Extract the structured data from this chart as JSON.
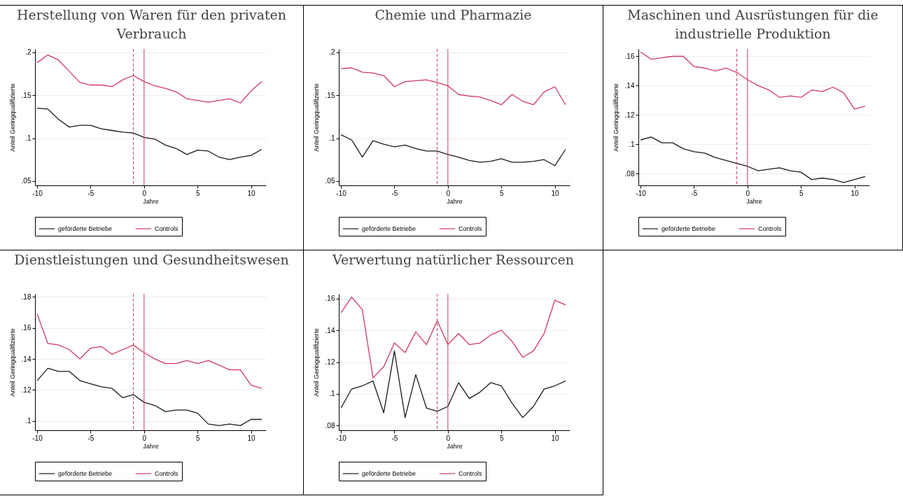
{
  "chart_data": [
    {
      "type": "line",
      "title": "Herstellung von Waren für den privaten Verbrauch",
      "xlabel": "Jahre",
      "ylabel": "Anteil Geringqualifizierte",
      "x": [
        -10,
        -9,
        -8,
        -7,
        -6,
        -5,
        -4,
        -3,
        -2,
        -1,
        0,
        1,
        2,
        3,
        4,
        5,
        6,
        7,
        8,
        9,
        10,
        11
      ],
      "xlim": [
        -10.2,
        11.4
      ],
      "xticks": [
        -10,
        -5,
        0,
        5,
        10
      ],
      "ylim": [
        0.045,
        0.204
      ],
      "yticks": [
        {
          "value": 0.05,
          "label": ".05"
        },
        {
          "value": 0.1,
          "label": ".1"
        },
        {
          "value": 0.15,
          "label": ".15"
        },
        {
          "value": 0.2,
          "label": ".2"
        }
      ],
      "grid": "y",
      "legend": "bottom",
      "series": [
        {
          "name": "geförderte Betriebe",
          "color": "#1a1a1a",
          "values": [
            0.135,
            0.134,
            0.122,
            0.113,
            0.115,
            0.115,
            0.111,
            0.109,
            0.107,
            0.106,
            0.101,
            0.099,
            0.092,
            0.088,
            0.081,
            0.086,
            0.085,
            0.078,
            0.075,
            0.078,
            0.08,
            0.087
          ]
        },
        {
          "name": "Controls",
          "color": "#d03a5f",
          "values": [
            0.188,
            0.197,
            0.191,
            0.178,
            0.165,
            0.162,
            0.162,
            0.16,
            0.168,
            0.173,
            0.166,
            0.161,
            0.158,
            0.154,
            0.146,
            0.144,
            0.142,
            0.144,
            0.146,
            0.141,
            0.155,
            0.166
          ]
        }
      ],
      "ref_lines": [
        {
          "axis": "x",
          "value": -1,
          "color": "#d03a5f",
          "line_style": "dashed"
        },
        {
          "axis": "x",
          "value": 0,
          "color": "#d03a5f",
          "line_style": "solid"
        }
      ]
    },
    {
      "type": "line",
      "title": "Chemie und Pharmazie",
      "xlabel": "Jahre",
      "ylabel": "Anteil Geringqualifizierte",
      "x": [
        -10,
        -9,
        -8,
        -7,
        -6,
        -5,
        -4,
        -3,
        -2,
        -1,
        0,
        1,
        2,
        3,
        4,
        5,
        6,
        7,
        8,
        9,
        10,
        11
      ],
      "xlim": [
        -10.2,
        11.4
      ],
      "xticks": [
        -10,
        -5,
        0,
        5,
        10
      ],
      "ylim": [
        0.045,
        0.204
      ],
      "yticks": [
        {
          "value": 0.05,
          "label": ".05"
        },
        {
          "value": 0.1,
          "label": ".1"
        },
        {
          "value": 0.15,
          "label": ".15"
        },
        {
          "value": 0.2,
          "label": ".2"
        }
      ],
      "grid": "y",
      "legend": "bottom",
      "series": [
        {
          "name": "geförderte Betriebe",
          "color": "#1a1a1a",
          "values": [
            0.104,
            0.098,
            0.078,
            0.097,
            0.093,
            0.09,
            0.092,
            0.088,
            0.085,
            0.085,
            0.081,
            0.078,
            0.074,
            0.072,
            0.073,
            0.076,
            0.072,
            0.072,
            0.073,
            0.075,
            0.068,
            0.087
          ]
        },
        {
          "name": "Controls",
          "color": "#d03a5f",
          "values": [
            0.181,
            0.182,
            0.177,
            0.176,
            0.173,
            0.16,
            0.166,
            0.167,
            0.168,
            0.165,
            0.161,
            0.151,
            0.149,
            0.148,
            0.144,
            0.139,
            0.151,
            0.143,
            0.139,
            0.154,
            0.16,
            0.139
          ]
        }
      ],
      "ref_lines": [
        {
          "axis": "x",
          "value": -1,
          "color": "#d03a5f",
          "line_style": "dashed"
        },
        {
          "axis": "x",
          "value": 0,
          "color": "#d03a5f",
          "line_style": "solid"
        }
      ]
    },
    {
      "type": "line",
      "title": "Maschinen und Ausrüstungen für die industrielle Produktion",
      "xlabel": "Jahre",
      "ylabel": "Anteil Geringqualifizierte",
      "x": [
        -10,
        -9,
        -8,
        -7,
        -6,
        -5,
        -4,
        -3,
        -2,
        -1,
        0,
        1,
        2,
        3,
        4,
        5,
        6,
        7,
        8,
        9,
        10,
        11
      ],
      "xlim": [
        -10.2,
        11.4
      ],
      "xticks": [
        -10,
        -5,
        0,
        5,
        10
      ],
      "ylim": [
        0.072,
        0.165
      ],
      "yticks": [
        {
          "value": 0.08,
          "label": ".08"
        },
        {
          "value": 0.1,
          "label": ".1"
        },
        {
          "value": 0.12,
          "label": ".12"
        },
        {
          "value": 0.14,
          "label": ".14"
        },
        {
          "value": 0.16,
          "label": ".16"
        }
      ],
      "grid": "y",
      "legend": "bottom",
      "series": [
        {
          "name": "geförderte Betriebe",
          "color": "#1a1a1a",
          "values": [
            0.103,
            0.105,
            0.101,
            0.101,
            0.097,
            0.095,
            0.094,
            0.091,
            0.089,
            0.087,
            0.085,
            0.082,
            0.083,
            0.084,
            0.082,
            0.081,
            0.076,
            0.077,
            0.076,
            0.074,
            0.076,
            0.078
          ]
        },
        {
          "name": "Controls",
          "color": "#d03a5f",
          "values": [
            0.163,
            0.158,
            0.159,
            0.16,
            0.16,
            0.153,
            0.152,
            0.15,
            0.152,
            0.149,
            0.144,
            0.14,
            0.137,
            0.132,
            0.133,
            0.132,
            0.137,
            0.136,
            0.139,
            0.135,
            0.124,
            0.126
          ]
        }
      ],
      "ref_lines": [
        {
          "axis": "x",
          "value": -1,
          "color": "#d03a5f",
          "line_style": "dashed"
        },
        {
          "axis": "x",
          "value": 0,
          "color": "#d03a5f",
          "line_style": "solid"
        }
      ]
    },
    {
      "type": "line",
      "title": "Dienstleistungen und Gesundheitswesen",
      "xlabel": "Jahre",
      "ylabel": "Anteil Geringqualifizierte",
      "x": [
        -10,
        -9,
        -8,
        -7,
        -6,
        -5,
        -4,
        -3,
        -2,
        -1,
        0,
        1,
        2,
        3,
        4,
        5,
        6,
        7,
        8,
        9,
        10,
        11
      ],
      "xlim": [
        -10.2,
        11.4
      ],
      "xticks": [
        -10,
        -5,
        0,
        5,
        10
      ],
      "ylim": [
        0.094,
        0.182
      ],
      "yticks": [
        {
          "value": 0.1,
          "label": ".1"
        },
        {
          "value": 0.12,
          "label": ".12"
        },
        {
          "value": 0.14,
          "label": ".14"
        },
        {
          "value": 0.16,
          "label": ".16"
        },
        {
          "value": 0.18,
          "label": ".18"
        }
      ],
      "grid": "y",
      "legend": "bottom",
      "series": [
        {
          "name": "geförderte Betriebe",
          "color": "#1a1a1a",
          "values": [
            0.126,
            0.134,
            0.132,
            0.132,
            0.126,
            0.124,
            0.122,
            0.121,
            0.115,
            0.117,
            0.112,
            0.11,
            0.106,
            0.107,
            0.107,
            0.105,
            0.098,
            0.097,
            0.098,
            0.097,
            0.101,
            0.101
          ]
        },
        {
          "name": "Controls",
          "color": "#d03a5f",
          "values": [
            0.169,
            0.15,
            0.149,
            0.146,
            0.14,
            0.147,
            0.148,
            0.143,
            0.146,
            0.149,
            0.144,
            0.14,
            0.137,
            0.137,
            0.139,
            0.137,
            0.139,
            0.136,
            0.133,
            0.133,
            0.123,
            0.121
          ]
        }
      ],
      "ref_lines": [
        {
          "axis": "x",
          "value": -1,
          "color": "#d03a5f",
          "line_style": "dashed"
        },
        {
          "axis": "x",
          "value": 0,
          "color": "#d03a5f",
          "line_style": "solid"
        }
      ]
    },
    {
      "type": "line",
      "title": "Verwertung natürlicher Ressourcen",
      "xlabel": "Jahre",
      "ylabel": "Anteil Geringqualifizierte",
      "x": [
        -10,
        -9,
        -8,
        -7,
        -6,
        -5,
        -4,
        -3,
        -2,
        -1,
        0,
        1,
        2,
        3,
        4,
        5,
        6,
        7,
        8,
        9,
        10,
        11
      ],
      "xlim": [
        -10.2,
        11.4
      ],
      "xticks": [
        -10,
        -5,
        0,
        5,
        10
      ],
      "ylim": [
        0.077,
        0.163
      ],
      "yticks": [
        {
          "value": 0.08,
          "label": ".08"
        },
        {
          "value": 0.1,
          "label": ".1"
        },
        {
          "value": 0.12,
          "label": ".12"
        },
        {
          "value": 0.14,
          "label": ".14"
        },
        {
          "value": 0.16,
          "label": ".16"
        }
      ],
      "grid": "y",
      "legend": "bottom",
      "series": [
        {
          "name": "geförderte Betriebe",
          "color": "#1a1a1a",
          "values": [
            0.091,
            0.103,
            0.105,
            0.108,
            0.088,
            0.127,
            0.085,
            0.112,
            0.091,
            0.089,
            0.092,
            0.107,
            0.097,
            0.101,
            0.107,
            0.105,
            0.094,
            0.085,
            0.092,
            0.103,
            0.105,
            0.108
          ]
        },
        {
          "name": "Controls",
          "color": "#d03a5f",
          "values": [
            0.151,
            0.161,
            0.153,
            0.11,
            0.117,
            0.132,
            0.126,
            0.139,
            0.131,
            0.146,
            0.131,
            0.138,
            0.131,
            0.132,
            0.137,
            0.14,
            0.133,
            0.123,
            0.127,
            0.138,
            0.159,
            0.156
          ]
        }
      ],
      "ref_lines": [
        {
          "axis": "x",
          "value": -1,
          "color": "#d03a5f",
          "line_style": "dashed"
        },
        {
          "axis": "x",
          "value": 0,
          "color": "#d03a5f",
          "line_style": "solid"
        }
      ]
    }
  ]
}
